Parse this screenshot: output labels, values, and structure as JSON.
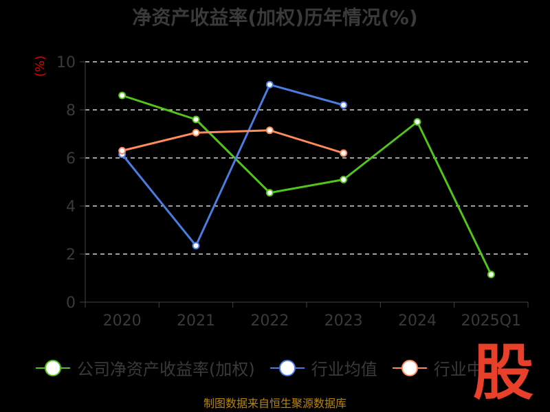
{
  "chart_data": {
    "type": "line",
    "title": "净资产收益率(加权)历年情况(%)",
    "ylabel": "(%)",
    "categories": [
      "2020",
      "2021",
      "2022",
      "2023",
      "2024",
      "2025Q1"
    ],
    "ylim": [
      0,
      10
    ],
    "yticks": [
      0,
      2,
      4,
      6,
      8,
      10
    ],
    "grid": true,
    "legend_position": "bottom",
    "series": [
      {
        "name": "公司净资产收益率(加权)",
        "color": "#52c41a",
        "values": [
          8.6,
          7.6,
          4.55,
          5.1,
          7.5,
          1.15
        ]
      },
      {
        "name": "行业均值",
        "color": "#4a7de0",
        "values": [
          6.15,
          2.35,
          9.05,
          8.2,
          null,
          null
        ]
      },
      {
        "name": "行业中位数",
        "color": "#ff8c5a",
        "values": [
          6.3,
          7.05,
          7.15,
          6.2,
          null,
          null
        ]
      }
    ]
  },
  "legend": {
    "item1": "公司净资产收益率(加权)",
    "item2": "行业均值",
    "item3": "行业中"
  },
  "source_text": "制图数据来自恒生聚源数据库",
  "watermark_text": "股"
}
